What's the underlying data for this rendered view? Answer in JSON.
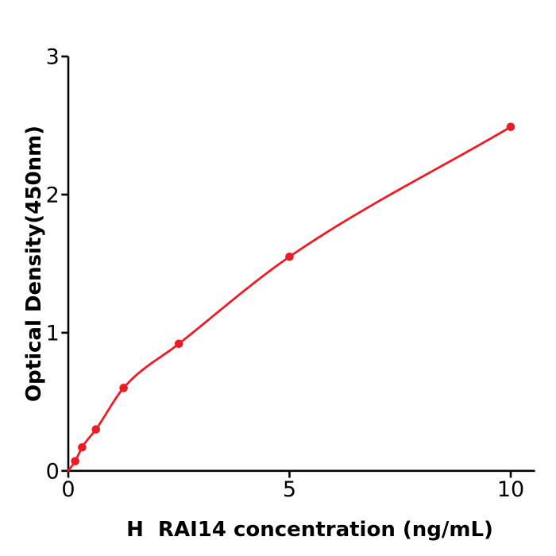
{
  "chart_data": {
    "type": "scatter",
    "title": "",
    "xlabel": "H  RAI14 concentration (ng/mL)",
    "ylabel": "Optical Density(450nm)",
    "x": [
      0.156,
      0.3125,
      0.625,
      1.25,
      2.5,
      5,
      10
    ],
    "y": [
      0.07,
      0.17,
      0.3,
      0.6,
      0.92,
      1.55,
      2.49
    ],
    "curve_start": {
      "x": 0,
      "y": 0
    },
    "xlim": [
      0,
      10.55
    ],
    "ylim": [
      0,
      3
    ],
    "xticks": [
      0,
      5,
      10
    ],
    "yticks": [
      0,
      1,
      2,
      3
    ],
    "grid": false,
    "legend": "none",
    "line_color": "#ed1c24",
    "marker_color": "#ed1c24",
    "axis_color": "#000000"
  }
}
